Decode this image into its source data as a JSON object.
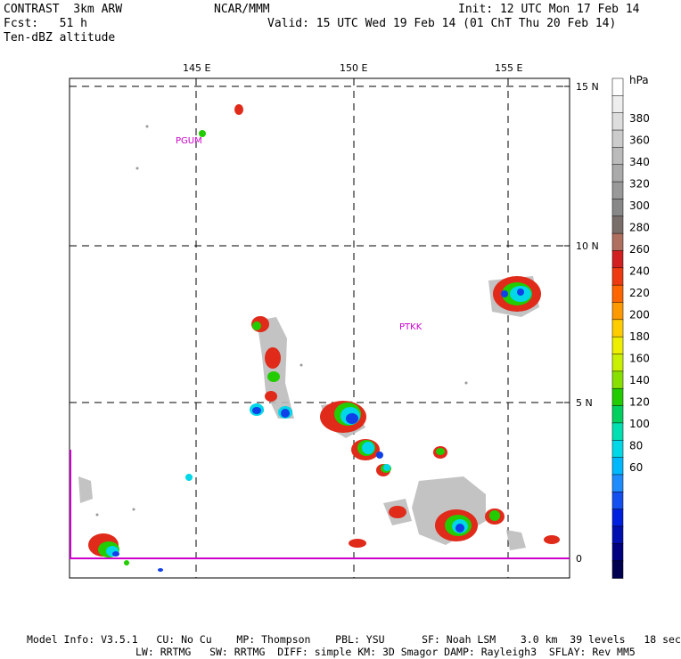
{
  "header": {
    "left_line1": "CONTRAST  3km ARW",
    "left_line2": "Fcst:   51 h",
    "left_line3": "Ten-dBZ altitude",
    "center": "NCAR/MMM",
    "right_line1": "Init: 12 UTC Mon 17 Feb 14",
    "right_line2": "Valid: 15 UTC Wed 19 Feb 14 (01 ChT Thu 20 Feb 14)"
  },
  "map": {
    "lon_labels": [
      "145 E",
      "150 E",
      "155 E"
    ],
    "lat_labels": [
      "15 N",
      "10 N",
      "5 N",
      "0"
    ],
    "stations": [
      "PGUM",
      "PTKK"
    ]
  },
  "colorbar": {
    "unit": "hPa",
    "labels": [
      "380",
      "360",
      "340",
      "320",
      "300",
      "280",
      "260",
      "240",
      "220",
      "200",
      "180",
      "160",
      "140",
      "120",
      "100",
      "80",
      "60"
    ],
    "colors": [
      "#ffffff",
      "#eeeeee",
      "#dddddd",
      "#cccccc",
      "#bbbbbb",
      "#aaaaaa",
      "#999999",
      "#888888",
      "#7a6e6a",
      "#b07060",
      "#d22020",
      "#ee3a10",
      "#ff6600",
      "#ff9900",
      "#ffcc00",
      "#eeee00",
      "#c8f000",
      "#88e000",
      "#22cc00",
      "#00d060",
      "#00e0b0",
      "#00d8e8",
      "#00b8ff",
      "#1e8cff",
      "#1450f0",
      "#0020e0",
      "#0010b0",
      "#000080",
      "#000050"
    ]
  },
  "footer": {
    "line1": "Model Info: V3.5.1   CU: No Cu    MP: Thompson    PBL: YSU      SF: Noah LSM    3.0 km  39 levels   18 sec",
    "line2": "LW: RRTMG   SW: RRTMG  DIFF: simple KM: 3D Smagor DAMP: Rayleigh3  SFLAY: Rev MM5"
  }
}
